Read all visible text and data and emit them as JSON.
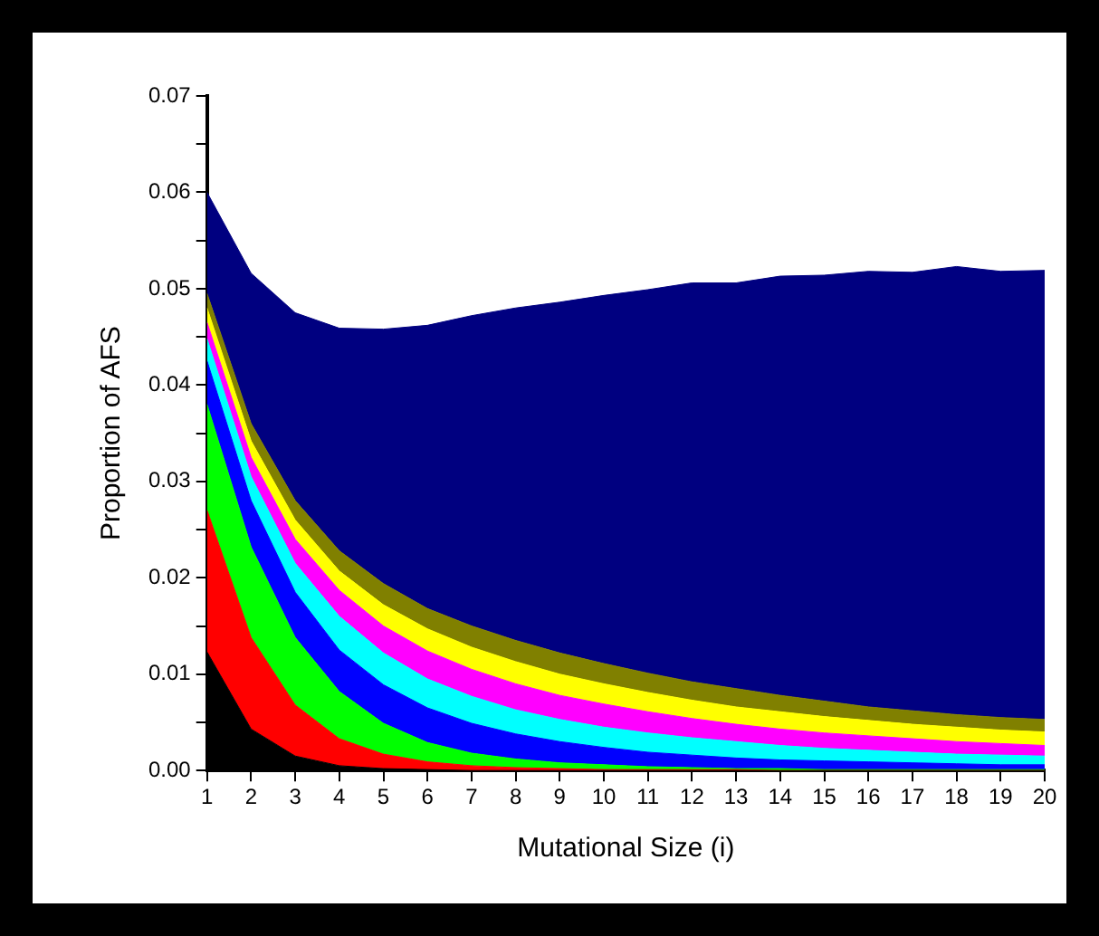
{
  "chart_data": {
    "type": "area",
    "stacked": true,
    "xlabel": "Mutational Size (i)",
    "ylabel": "Proportion of AFS",
    "x": [
      1,
      2,
      3,
      4,
      5,
      6,
      7,
      8,
      9,
      10,
      11,
      12,
      13,
      14,
      15,
      16,
      17,
      18,
      19,
      20
    ],
    "xlim": [
      1,
      20
    ],
    "xticks": [
      1,
      2,
      3,
      4,
      5,
      6,
      7,
      8,
      9,
      10,
      11,
      12,
      13,
      14,
      15,
      16,
      17,
      18,
      19,
      20
    ],
    "ylim": [
      0,
      0.07
    ],
    "yticks": [
      {
        "value": 0,
        "label": "0.00"
      },
      {
        "value": 0.005,
        "label": null
      },
      {
        "value": 0.01,
        "label": "0.01"
      },
      {
        "value": 0.015,
        "label": null
      },
      {
        "value": 0.02,
        "label": "0.02"
      },
      {
        "value": 0.025,
        "label": null
      },
      {
        "value": 0.03,
        "label": "0.03"
      },
      {
        "value": 0.035,
        "label": null
      },
      {
        "value": 0.04,
        "label": "0.04"
      },
      {
        "value": 0.045,
        "label": null
      },
      {
        "value": 0.05,
        "label": "0.05"
      },
      {
        "value": 0.055,
        "label": null
      },
      {
        "value": 0.06,
        "label": "0.06"
      },
      {
        "value": 0.065,
        "label": null
      },
      {
        "value": 0.07,
        "label": "0.07"
      }
    ],
    "grid": false,
    "legend": false,
    "marker": "none",
    "series": [
      {
        "color": "#000000",
        "values": [
          0.0123,
          0.0043,
          0.0015,
          0.0005,
          0.0002,
          0.0001,
          0,
          0,
          0,
          0,
          0,
          0,
          0,
          0,
          0,
          0,
          0,
          0,
          0,
          0
        ]
      },
      {
        "color": "#ff0000",
        "values": [
          0.0147,
          0.0095,
          0.0053,
          0.0028,
          0.0015,
          0.0008,
          0.0005,
          0.0003,
          0.0002,
          0.0001,
          0.0001,
          0.0001,
          0.0001,
          0,
          0,
          0,
          0,
          0,
          0,
          0
        ]
      },
      {
        "color": "#00ff00",
        "values": [
          0.011,
          0.0094,
          0.007,
          0.0049,
          0.0032,
          0.002,
          0.0013,
          0.0009,
          0.0006,
          0.0005,
          0.0003,
          0.0002,
          0.0001,
          0.0002,
          0.0001,
          0.0001,
          0.0001,
          0.0001,
          0.0001,
          0.0001
        ]
      },
      {
        "color": "#0000ff",
        "values": [
          0.0045,
          0.0048,
          0.0047,
          0.0043,
          0.004,
          0.0036,
          0.0031,
          0.0026,
          0.0022,
          0.0018,
          0.0015,
          0.0013,
          0.0011,
          0.0009,
          0.0009,
          0.0008,
          0.0007,
          0.0006,
          0.0005,
          0.0005
        ]
      },
      {
        "color": "#00ffff",
        "values": [
          0.0023,
          0.0025,
          0.003,
          0.0035,
          0.0033,
          0.003,
          0.0028,
          0.0025,
          0.0023,
          0.0021,
          0.002,
          0.0018,
          0.0017,
          0.0015,
          0.0013,
          0.0012,
          0.0011,
          0.001,
          0.001,
          0.0009
        ]
      },
      {
        "color": "#ff00ff",
        "values": [
          0.0017,
          0.002,
          0.0025,
          0.0027,
          0.0028,
          0.0029,
          0.0028,
          0.0027,
          0.0025,
          0.0024,
          0.0022,
          0.002,
          0.0018,
          0.0017,
          0.0016,
          0.0015,
          0.0014,
          0.0013,
          0.0012,
          0.0011
        ]
      },
      {
        "color": "#ffff00",
        "values": [
          0.0015,
          0.0017,
          0.002,
          0.002,
          0.0022,
          0.0023,
          0.0023,
          0.0023,
          0.0022,
          0.0021,
          0.002,
          0.0019,
          0.0018,
          0.0018,
          0.0017,
          0.0016,
          0.0015,
          0.0015,
          0.0014,
          0.0014
        ]
      },
      {
        "color": "#808000",
        "values": [
          0.0015,
          0.0018,
          0.002,
          0.0021,
          0.0022,
          0.0021,
          0.0022,
          0.0022,
          0.0022,
          0.0021,
          0.002,
          0.0019,
          0.0019,
          0.0017,
          0.0016,
          0.0014,
          0.0014,
          0.0013,
          0.0013,
          0.0013
        ]
      },
      {
        "color": "#000080",
        "values": [
          0.0105,
          0.0156,
          0.0195,
          0.0231,
          0.0264,
          0.0294,
          0.0322,
          0.0345,
          0.0364,
          0.0382,
          0.0398,
          0.0414,
          0.0421,
          0.0435,
          0.0442,
          0.0452,
          0.0455,
          0.0465,
          0.0463,
          0.0466
        ]
      }
    ]
  }
}
